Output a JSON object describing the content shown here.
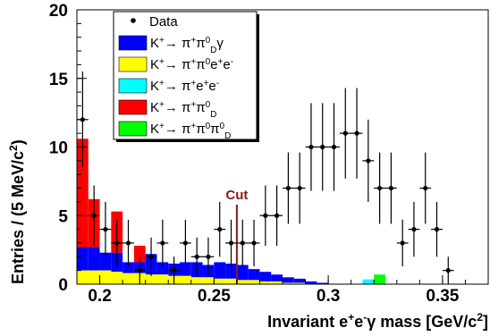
{
  "chart_data": {
    "type": "histogram",
    "xlabel_parts": [
      "Invariant e",
      "+",
      "e",
      "-",
      "γ mass [GeV/c",
      "2",
      "]"
    ],
    "ylabel_parts": [
      "Entries / (5 MeV/c",
      "2",
      ")"
    ],
    "xlim": [
      0.19,
      0.37
    ],
    "ylim": [
      0,
      20
    ],
    "x_ticks": [
      "0.2",
      "0.25",
      "0.3",
      "0.35"
    ],
    "x_tick_values": [
      0.2,
      0.25,
      0.3,
      0.35
    ],
    "y_ticks": [
      "0",
      "5",
      "10",
      "15",
      "20"
    ],
    "y_tick_values": [
      0,
      5,
      10,
      15,
      20
    ],
    "bin_width": 0.005,
    "cut": {
      "label": "Cut",
      "x": 0.26,
      "ymax": 5.8,
      "color": "#8b1a1a"
    },
    "stack": [
      {
        "name": "K+→π+π0Dγ",
        "color": "#0000ff",
        "bins": [
          {
            "x0": 0.19,
            "x1": 0.195,
            "y0": 1.0,
            "y1": 2.7
          },
          {
            "x0": 0.195,
            "x1": 0.2,
            "y0": 1.0,
            "y1": 2.7
          },
          {
            "x0": 0.2,
            "x1": 0.205,
            "y0": 1.0,
            "y1": 2.3
          },
          {
            "x0": 0.205,
            "x1": 0.21,
            "y0": 0.9,
            "y1": 2.3
          },
          {
            "x0": 0.21,
            "x1": 0.215,
            "y0": 0.8,
            "y1": 1.6
          },
          {
            "x0": 0.215,
            "x1": 0.22,
            "y0": 0.8,
            "y1": 1.6
          },
          {
            "x0": 0.22,
            "x1": 0.225,
            "y0": 0.7,
            "y1": 2.2
          },
          {
            "x0": 0.225,
            "x1": 0.23,
            "y0": 0.7,
            "y1": 1.6
          },
          {
            "x0": 0.23,
            "x1": 0.235,
            "y0": 0.6,
            "y1": 1.5
          },
          {
            "x0": 0.235,
            "x1": 0.24,
            "y0": 0.6,
            "y1": 1.6
          },
          {
            "x0": 0.24,
            "x1": 0.245,
            "y0": 0.5,
            "y1": 1.6
          },
          {
            "x0": 0.245,
            "x1": 0.25,
            "y0": 0.5,
            "y1": 1.4
          },
          {
            "x0": 0.25,
            "x1": 0.255,
            "y0": 0.4,
            "y1": 1.6
          },
          {
            "x0": 0.255,
            "x1": 0.26,
            "y0": 0.4,
            "y1": 1.5
          },
          {
            "x0": 0.26,
            "x1": 0.265,
            "y0": 0.3,
            "y1": 1.4
          },
          {
            "x0": 0.265,
            "x1": 0.27,
            "y0": 0.3,
            "y1": 1.1
          },
          {
            "x0": 0.27,
            "x1": 0.275,
            "y0": 0.2,
            "y1": 0.9
          },
          {
            "x0": 0.275,
            "x1": 0.28,
            "y0": 0.2,
            "y1": 0.7
          },
          {
            "x0": 0.28,
            "x1": 0.285,
            "y0": 0.1,
            "y1": 0.5
          },
          {
            "x0": 0.285,
            "x1": 0.29,
            "y0": 0.1,
            "y1": 0.4
          },
          {
            "x0": 0.29,
            "x1": 0.295,
            "y0": 0.0,
            "y1": 0.2
          },
          {
            "x0": 0.295,
            "x1": 0.3,
            "y0": 0.0,
            "y1": 0.1
          }
        ]
      },
      {
        "name": "K+→π+π0e+e-",
        "color": "#ffff00",
        "bins": [
          {
            "x0": 0.19,
            "x1": 0.195,
            "y0": 0,
            "y1": 1.0
          },
          {
            "x0": 0.195,
            "x1": 0.2,
            "y0": 0,
            "y1": 1.0
          },
          {
            "x0": 0.2,
            "x1": 0.205,
            "y0": 0,
            "y1": 1.0
          },
          {
            "x0": 0.205,
            "x1": 0.21,
            "y0": 0,
            "y1": 0.9
          },
          {
            "x0": 0.21,
            "x1": 0.215,
            "y0": 0,
            "y1": 0.8
          },
          {
            "x0": 0.215,
            "x1": 0.22,
            "y0": 0,
            "y1": 0.8
          },
          {
            "x0": 0.22,
            "x1": 0.225,
            "y0": 0,
            "y1": 0.7
          },
          {
            "x0": 0.225,
            "x1": 0.23,
            "y0": 0,
            "y1": 0.7
          },
          {
            "x0": 0.23,
            "x1": 0.235,
            "y0": 0,
            "y1": 0.6
          },
          {
            "x0": 0.235,
            "x1": 0.24,
            "y0": 0,
            "y1": 0.6
          },
          {
            "x0": 0.24,
            "x1": 0.245,
            "y0": 0,
            "y1": 0.5
          },
          {
            "x0": 0.245,
            "x1": 0.25,
            "y0": 0,
            "y1": 0.5
          },
          {
            "x0": 0.25,
            "x1": 0.255,
            "y0": 0,
            "y1": 0.4
          },
          {
            "x0": 0.255,
            "x1": 0.26,
            "y0": 0,
            "y1": 0.4
          },
          {
            "x0": 0.26,
            "x1": 0.265,
            "y0": 0,
            "y1": 0.3
          },
          {
            "x0": 0.265,
            "x1": 0.27,
            "y0": 0,
            "y1": 0.3
          },
          {
            "x0": 0.27,
            "x1": 0.275,
            "y0": 0,
            "y1": 0.2
          },
          {
            "x0": 0.275,
            "x1": 0.28,
            "y0": 0,
            "y1": 0.2
          },
          {
            "x0": 0.28,
            "x1": 0.285,
            "y0": 0,
            "y1": 0.1
          },
          {
            "x0": 0.285,
            "x1": 0.29,
            "y0": 0,
            "y1": 0.1
          }
        ]
      },
      {
        "name": "K+→π+e+e-",
        "color": "#00ffff",
        "bins": [
          {
            "x0": 0.315,
            "x1": 0.32,
            "y0": 0,
            "y1": 0.35
          }
        ]
      },
      {
        "name": "K+→π+π0D",
        "color": "#ff0000",
        "bins": [
          {
            "x0": 0.19,
            "x1": 0.195,
            "y0": 2.7,
            "y1": 10.6
          },
          {
            "x0": 0.195,
            "x1": 0.2,
            "y0": 2.7,
            "y1": 6.2
          },
          {
            "x0": 0.205,
            "x1": 0.21,
            "y0": 2.3,
            "y1": 5.3
          },
          {
            "x0": 0.215,
            "x1": 0.22,
            "y0": 1.6,
            "y1": 2.8
          }
        ]
      },
      {
        "name": "K+→π+π0π0D",
        "color": "#00ff00",
        "bins": [
          {
            "x0": 0.32,
            "x1": 0.325,
            "y0": 0,
            "y1": 0.7
          }
        ]
      }
    ],
    "series": [
      {
        "name": "Data",
        "points": [
          {
            "x": 0.1925,
            "y": 12,
            "err": 3.5
          },
          {
            "x": 0.1975,
            "y": 5,
            "err": 2.2
          },
          {
            "x": 0.2025,
            "y": 4,
            "err": 2.0
          },
          {
            "x": 0.2075,
            "y": 3,
            "err": 1.7
          },
          {
            "x": 0.2125,
            "y": 3,
            "err": 1.7
          },
          {
            "x": 0.2175,
            "y": 1,
            "err": 1.0
          },
          {
            "x": 0.2225,
            "y": 2,
            "err": 1.4
          },
          {
            "x": 0.2275,
            "y": 3,
            "err": 1.7
          },
          {
            "x": 0.2325,
            "y": 1,
            "err": 1.0
          },
          {
            "x": 0.2375,
            "y": 3,
            "err": 1.7
          },
          {
            "x": 0.2425,
            "y": 2,
            "err": 1.4
          },
          {
            "x": 0.2475,
            "y": 2,
            "err": 1.4
          },
          {
            "x": 0.2525,
            "y": 4,
            "err": 2.0
          },
          {
            "x": 0.2575,
            "y": 3,
            "err": 1.7
          },
          {
            "x": 0.2625,
            "y": 3,
            "err": 1.7
          },
          {
            "x": 0.2675,
            "y": 3,
            "err": 1.7
          },
          {
            "x": 0.2725,
            "y": 5,
            "err": 2.2
          },
          {
            "x": 0.2775,
            "y": 5,
            "err": 2.2
          },
          {
            "x": 0.2825,
            "y": 7,
            "err": 2.6
          },
          {
            "x": 0.2875,
            "y": 7,
            "err": 2.6
          },
          {
            "x": 0.2925,
            "y": 10,
            "err": 3.2
          },
          {
            "x": 0.2975,
            "y": 10,
            "err": 3.2
          },
          {
            "x": 0.3025,
            "y": 10,
            "err": 3.2
          },
          {
            "x": 0.3075,
            "y": 11,
            "err": 3.3
          },
          {
            "x": 0.3125,
            "y": 11,
            "err": 3.3
          },
          {
            "x": 0.3175,
            "y": 9,
            "err": 3.0
          },
          {
            "x": 0.3225,
            "y": 7,
            "err": 2.6
          },
          {
            "x": 0.3275,
            "y": 7,
            "err": 2.6
          },
          {
            "x": 0.3325,
            "y": 3,
            "err": 1.7
          },
          {
            "x": 0.3375,
            "y": 4,
            "err": 2.0
          },
          {
            "x": 0.3425,
            "y": 7,
            "err": 2.6
          },
          {
            "x": 0.3475,
            "y": 4,
            "err": 2.0
          },
          {
            "x": 0.3525,
            "y": 1,
            "err": 1.0
          }
        ]
      }
    ],
    "legend": [
      {
        "kind": "marker",
        "text": "Data"
      },
      {
        "kind": "fill",
        "color": "#0000ff",
        "parts": [
          {
            "t": "K"
          },
          {
            "t": "+",
            "s": "sup"
          },
          {
            "t": "→ π"
          },
          {
            "t": "+",
            "s": "sup"
          },
          {
            "t": "π"
          },
          {
            "t": "0",
            "s": "sup"
          },
          {
            "t": "D",
            "s": "sub"
          },
          {
            "t": "γ"
          }
        ]
      },
      {
        "kind": "fill",
        "color": "#ffff00",
        "parts": [
          {
            "t": "K"
          },
          {
            "t": "+",
            "s": "sup"
          },
          {
            "t": "→ π"
          },
          {
            "t": "+",
            "s": "sup"
          },
          {
            "t": "π"
          },
          {
            "t": "0",
            "s": "sup"
          },
          {
            "t": "e"
          },
          {
            "t": "+",
            "s": "sup"
          },
          {
            "t": "e"
          },
          {
            "t": "-",
            "s": "sup"
          }
        ]
      },
      {
        "kind": "fill",
        "color": "#00ffff",
        "parts": [
          {
            "t": "K"
          },
          {
            "t": "+",
            "s": "sup"
          },
          {
            "t": "→ π"
          },
          {
            "t": "+",
            "s": "sup"
          },
          {
            "t": "e"
          },
          {
            "t": "+",
            "s": "sup"
          },
          {
            "t": "e"
          },
          {
            "t": "-",
            "s": "sup"
          }
        ]
      },
      {
        "kind": "fill",
        "color": "#ff0000",
        "parts": [
          {
            "t": "K"
          },
          {
            "t": "+",
            "s": "sup"
          },
          {
            "t": "→ π"
          },
          {
            "t": "+",
            "s": "sup"
          },
          {
            "t": "π"
          },
          {
            "t": "0",
            "s": "sup"
          },
          {
            "t": "D",
            "s": "sub"
          }
        ]
      },
      {
        "kind": "fill",
        "color": "#00ff00",
        "parts": [
          {
            "t": "K"
          },
          {
            "t": "+",
            "s": "sup"
          },
          {
            "t": "→ π"
          },
          {
            "t": "+",
            "s": "sup"
          },
          {
            "t": "π"
          },
          {
            "t": "0",
            "s": "sup"
          },
          {
            "t": "π"
          },
          {
            "t": "0",
            "s": "sup"
          },
          {
            "t": "D",
            "s": "sub"
          }
        ]
      }
    ]
  }
}
